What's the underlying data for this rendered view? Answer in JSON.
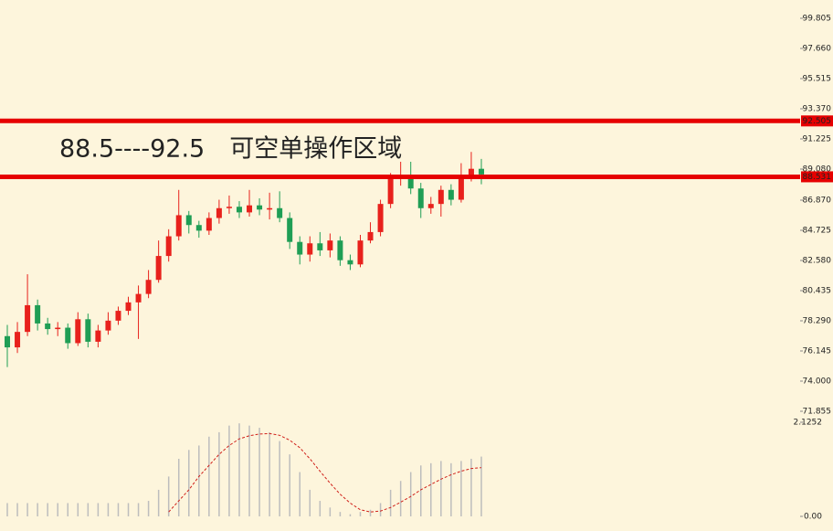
{
  "chart_data": [
    {
      "type": "candlestick",
      "annotation": "88.5----92.5　可空单操作区域",
      "up_color": "#e8211c",
      "down_color": "#1f9e55",
      "level_color": "#e60000",
      "levels": [
        92.505,
        88.531
      ],
      "open": [
        77.2,
        76.4,
        77.5,
        79.4,
        78.1,
        77.7,
        77.8,
        76.7,
        78.4,
        76.8,
        77.6,
        78.3,
        79.0,
        79.6,
        80.2,
        81.2,
        82.9,
        84.3,
        85.8,
        85.1,
        84.7,
        85.6,
        86.3,
        86.4,
        86.0,
        86.5,
        86.2,
        86.3,
        85.6,
        83.9,
        83.0,
        83.8,
        83.3,
        84.0,
        82.6,
        82.3,
        84.0,
        84.6,
        86.6,
        88.4,
        88.5,
        87.7,
        86.3,
        86.6,
        87.6,
        86.9,
        88.5,
        89.1
      ],
      "high": [
        78.0,
        78.2,
        81.6,
        79.8,
        78.5,
        78.2,
        78.1,
        78.9,
        78.8,
        78.0,
        78.9,
        79.3,
        80.0,
        80.8,
        81.9,
        84.0,
        84.8,
        87.6,
        86.1,
        85.4,
        86.0,
        86.9,
        87.2,
        86.8,
        87.6,
        87.0,
        87.4,
        87.5,
        86.0,
        84.3,
        84.3,
        84.6,
        84.5,
        84.3,
        83.0,
        84.4,
        85.3,
        86.9,
        88.8,
        89.6,
        89.6,
        88.1,
        87.1,
        87.9,
        88.0,
        89.5,
        90.3,
        89.8
      ],
      "low": [
        75.0,
        76.0,
        77.2,
        77.6,
        77.3,
        77.2,
        76.3,
        76.5,
        76.4,
        76.4,
        77.3,
        78.0,
        78.7,
        77.0,
        79.9,
        81.0,
        82.5,
        84.0,
        84.5,
        84.2,
        84.4,
        85.2,
        85.9,
        85.6,
        85.7,
        85.8,
        85.5,
        85.3,
        83.4,
        82.3,
        82.5,
        82.9,
        82.8,
        82.2,
        81.9,
        82.1,
        83.8,
        84.3,
        86.3,
        87.9,
        87.3,
        85.6,
        85.9,
        85.7,
        86.5,
        86.7,
        88.2,
        88.0
      ],
      "close": [
        76.4,
        77.5,
        79.4,
        78.1,
        77.7,
        77.8,
        76.7,
        78.4,
        76.8,
        77.6,
        78.3,
        79.0,
        79.6,
        80.2,
        81.2,
        82.9,
        84.3,
        85.8,
        85.1,
        84.7,
        85.6,
        86.3,
        86.4,
        86.0,
        86.5,
        86.2,
        86.3,
        85.6,
        83.9,
        83.0,
        83.8,
        83.3,
        84.0,
        82.6,
        82.3,
        84.0,
        84.6,
        86.6,
        88.4,
        88.5,
        87.7,
        86.3,
        86.6,
        87.6,
        86.9,
        88.5,
        89.1,
        88.7
      ],
      "ylim": [
        71.855,
        99.805
      ],
      "yticks": [
        99.805,
        {
          "value": 97.66,
          "label": "97.660"
        },
        95.515,
        {
          "value": 93.37,
          "label": "93.370"
        },
        91.225,
        {
          "value": 89.08,
          "label": "89.080"
        },
        {
          "value": 86.87,
          "label": "86.870"
        },
        84.725,
        {
          "value": 82.58,
          "label": "82.580"
        },
        80.435,
        {
          "value": 78.29,
          "label": "78.290"
        },
        76.145,
        {
          "value": 74.0,
          "label": "74.000"
        },
        71.855
      ]
    },
    {
      "type": "macd",
      "color": "#bdbdbd",
      "line_color": "#d0201a",
      "values": [
        0.3,
        0.3,
        0.3,
        0.3,
        0.3,
        0.3,
        0.3,
        0.3,
        0.3,
        0.3,
        0.3,
        0.3,
        0.3,
        0.3,
        0.35,
        0.6,
        0.9,
        1.3,
        1.5,
        1.6,
        1.8,
        1.9,
        2.05,
        2.1,
        2.05,
        2.0,
        1.9,
        1.7,
        1.4,
        1.0,
        0.6,
        0.35,
        0.2,
        0.1,
        0.05,
        0.1,
        0.15,
        0.3,
        0.6,
        0.8,
        1.0,
        1.15,
        1.2,
        1.25,
        1.2,
        1.25,
        1.3,
        1.35
      ],
      "signal": [
        null,
        null,
        null,
        null,
        null,
        null,
        null,
        null,
        null,
        null,
        null,
        null,
        null,
        null,
        null,
        null,
        0.1,
        0.35,
        0.6,
        0.9,
        1.15,
        1.4,
        1.6,
        1.75,
        1.82,
        1.86,
        1.87,
        1.83,
        1.72,
        1.55,
        1.3,
        1.02,
        0.75,
        0.5,
        0.3,
        0.15,
        0.1,
        0.12,
        0.2,
        0.32,
        0.45,
        0.6,
        0.72,
        0.84,
        0.94,
        1.02,
        1.08,
        1.1
      ],
      "ylim": [
        0,
        2.1252
      ],
      "yticks": [
        {
          "value": 0,
          "label": "0.00"
        },
        2.1252
      ]
    }
  ]
}
